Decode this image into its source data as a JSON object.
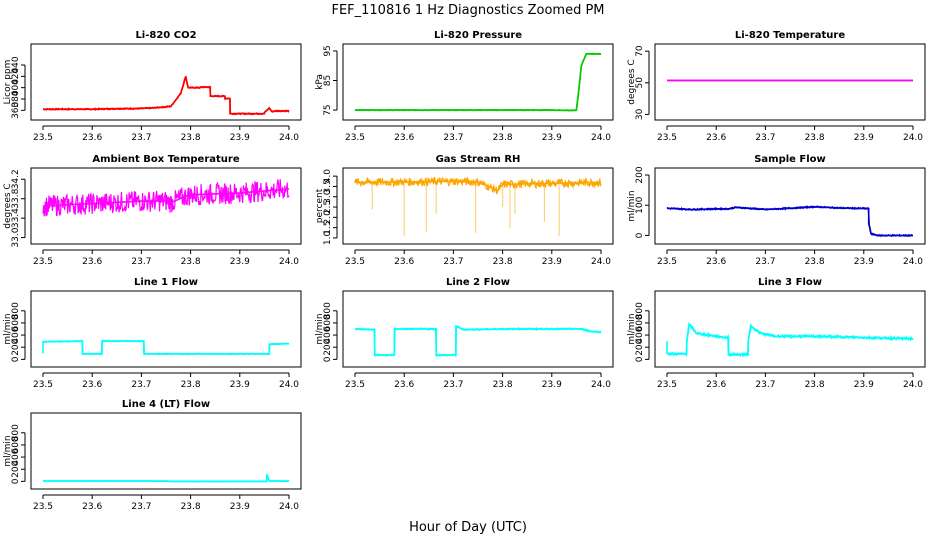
{
  "figure": {
    "title": "FEF_110816 1 Hz Diagnostics Zoomed PM",
    "xlabel": "Hour of Day (UTC)"
  },
  "chart_data": [
    {
      "type": "line",
      "title": "Li-820 CO2",
      "ylabel": "Licor ppm",
      "xlim": [
        23.5,
        24.0
      ],
      "ylim": [
        350,
        470
      ],
      "xticks": [
        "23.5",
        "23.6",
        "23.7",
        "23.8",
        "23.9",
        "24.0"
      ],
      "yticks": [
        "360",
        "380",
        "400",
        "420",
        "440"
      ],
      "series": [
        {
          "color": "#ff0000",
          "noise": 1,
          "x": [
            23.5,
            23.6,
            23.66,
            23.69,
            23.72,
            23.76,
            23.78,
            23.79,
            23.795,
            23.82,
            23.82,
            23.84,
            23.84,
            23.87,
            23.87,
            23.88,
            23.88,
            23.95,
            23.95,
            23.96,
            23.965,
            23.975,
            24.0
          ],
          "y": [
            362,
            362,
            363,
            363,
            364,
            367,
            390,
            420,
            400,
            400,
            401,
            401,
            385,
            385,
            381,
            381,
            354,
            354,
            356,
            364,
            358,
            359,
            359
          ]
        }
      ]
    },
    {
      "type": "line",
      "title": "Li-820 Pressure",
      "ylabel": "kPa",
      "xlim": [
        23.5,
        24.0
      ],
      "ylim": [
        73,
        96
      ],
      "xticks": [
        "23.5",
        "23.6",
        "23.7",
        "23.8",
        "23.9",
        "24.0"
      ],
      "yticks": [
        "75",
        "85",
        "95"
      ],
      "series": [
        {
          "color": "#00cc00",
          "noise": 0.1,
          "x": [
            23.5,
            23.89,
            23.89,
            23.945,
            23.95,
            23.955,
            23.96,
            23.97,
            24.0
          ],
          "y": [
            75,
            75,
            75,
            74.9,
            75,
            82,
            90,
            94,
            94
          ]
        }
      ]
    },
    {
      "type": "line",
      "title": "Li-820 Temperature",
      "ylabel": "degrees C",
      "xlim": [
        23.5,
        24.0
      ],
      "ylim": [
        29,
        72
      ],
      "xticks": [
        "23.5",
        "23.6",
        "23.7",
        "23.8",
        "23.9",
        "24.0"
      ],
      "yticks": [
        "30",
        "50",
        "70"
      ],
      "series": [
        {
          "color": "#ff00ff",
          "noise": 0,
          "x": [
            23.5,
            24.0
          ],
          "y": [
            51.5,
            51.5
          ]
        }
      ]
    },
    {
      "type": "line",
      "title": "Ambient Box Temperature",
      "ylabel": "degrees C",
      "xlim": [
        23.5,
        24.0
      ],
      "ylim": [
        32.95,
        34.35
      ],
      "xticks": [
        "23.5",
        "23.6",
        "23.7",
        "23.8",
        "23.9",
        "24.0"
      ],
      "yticks": [
        "33.0",
        "33.4",
        "33.8",
        "34.2"
      ],
      "series": [
        {
          "color": "#ff00ff",
          "noise": 0.22,
          "x": [
            23.5,
            23.6,
            23.7,
            23.75,
            23.76,
            23.79,
            23.8,
            23.9,
            24.0
          ],
          "y": [
            33.65,
            33.7,
            33.75,
            33.75,
            33.72,
            33.85,
            33.88,
            33.92,
            34.0
          ]
        }
      ]
    },
    {
      "type": "line",
      "title": "Gas Stream RH",
      "ylabel": "percent",
      "xlim": [
        23.5,
        24.0
      ],
      "ylim": [
        0.9,
        4.2
      ],
      "xticks": [
        "23.5",
        "23.6",
        "23.7",
        "23.8",
        "23.9",
        "24.0"
      ],
      "yticks": [
        "1.0",
        "1.5",
        "2.0",
        "2.5",
        "3.0",
        "3.5",
        "4.0"
      ],
      "series": [
        {
          "color": "#ffa500",
          "noise": 0.2,
          "x": [
            23.5,
            23.6,
            23.7,
            23.75,
            23.79,
            23.8,
            23.9,
            24.0
          ],
          "y": [
            3.7,
            3.72,
            3.75,
            3.72,
            3.3,
            3.6,
            3.65,
            3.7
          ]
        }
      ],
      "spikes": [
        [
          23.535,
          2.4
        ],
        [
          23.6,
          1.1
        ],
        [
          23.645,
          1.3
        ],
        [
          23.665,
          2.2
        ],
        [
          23.745,
          1.25
        ],
        [
          23.815,
          1.5
        ],
        [
          23.825,
          2.2
        ],
        [
          23.8,
          2.5
        ],
        [
          23.885,
          1.8
        ],
        [
          23.915,
          1.1
        ]
      ]
    },
    {
      "type": "line",
      "title": "Sample Flow",
      "ylabel": "ml/min",
      "xlim": [
        23.5,
        24.0
      ],
      "ylim": [
        -15,
        210
      ],
      "xticks": [
        "23.5",
        "23.6",
        "23.7",
        "23.8",
        "23.9",
        "24.0"
      ],
      "yticks": [
        "0",
        "100",
        "200"
      ],
      "series": [
        {
          "color": "#0000cc",
          "noise": 2,
          "x": [
            23.5,
            23.55,
            23.6,
            23.625,
            23.64,
            23.7,
            23.75,
            23.8,
            23.85,
            23.91,
            23.91,
            23.915,
            23.93,
            24.0
          ],
          "y": [
            90,
            86,
            88,
            88,
            93,
            86,
            90,
            95,
            91,
            89,
            40,
            5,
            0,
            0
          ]
        }
      ]
    },
    {
      "type": "line",
      "title": "Line 1 Flow",
      "ylabel": "ml/min",
      "xlim": [
        23.5,
        24.0
      ],
      "ylim": [
        -60,
        1060
      ],
      "xticks": [
        "23.5",
        "23.6",
        "23.7",
        "23.8",
        "23.9",
        "24.0"
      ],
      "yticks": [
        "0",
        "200",
        "400",
        "600",
        "800"
      ],
      "series": [
        {
          "color": "#00ffff",
          "noise": 6,
          "x": [
            23.5,
            23.5,
            23.58,
            23.58,
            23.62,
            23.62,
            23.705,
            23.705,
            23.96,
            23.96,
            24.0
          ],
          "y": [
            100,
            290,
            300,
            90,
            90,
            300,
            300,
            90,
            90,
            250,
            260
          ]
        }
      ]
    },
    {
      "type": "line",
      "title": "Line 2 Flow",
      "ylabel": "ml/min",
      "xlim": [
        23.5,
        24.0
      ],
      "ylim": [
        -60,
        1060
      ],
      "xticks": [
        "23.5",
        "23.6",
        "23.7",
        "23.8",
        "23.9",
        "24.0"
      ],
      "yticks": [
        "0",
        "200",
        "400",
        "600",
        "800"
      ],
      "series": [
        {
          "color": "#00ffff",
          "noise": 10,
          "x": [
            23.5,
            23.54,
            23.54,
            23.58,
            23.58,
            23.665,
            23.665,
            23.705,
            23.705,
            23.72,
            23.8,
            23.96,
            23.98,
            24.0
          ],
          "y": [
            500,
            490,
            70,
            70,
            500,
            500,
            70,
            70,
            550,
            490,
            500,
            500,
            460,
            450
          ]
        }
      ]
    },
    {
      "type": "line",
      "title": "Line 3 Flow",
      "ylabel": "ml/min",
      "xlim": [
        23.5,
        24.0
      ],
      "ylim": [
        -60,
        1060
      ],
      "xticks": [
        "23.5",
        "23.6",
        "23.7",
        "23.8",
        "23.9",
        "24.0"
      ],
      "yticks": [
        "0",
        "200",
        "400",
        "600",
        "800"
      ],
      "series": [
        {
          "color": "#00ffff",
          "noise": 18,
          "x": [
            23.5,
            23.5,
            23.505,
            23.54,
            23.54,
            23.545,
            23.56,
            23.6,
            23.62,
            23.625,
            23.625,
            23.665,
            23.665,
            23.67,
            23.69,
            23.72,
            23.8,
            23.9,
            24.0
          ],
          "y": [
            300,
            100,
            90,
            90,
            280,
            580,
            430,
            380,
            360,
            360,
            80,
            80,
            300,
            550,
            430,
            380,
            380,
            360,
            340
          ]
        }
      ]
    },
    {
      "type": "line",
      "title": "Line 4 (LT) Flow",
      "ylabel": "ml/min",
      "xlim": [
        23.5,
        24.0
      ],
      "ylim": [
        -60,
        1060
      ],
      "xticks": [
        "23.5",
        "23.6",
        "23.7",
        "23.8",
        "23.9",
        "24.0"
      ],
      "yticks": [
        "0",
        "200",
        "400",
        "600",
        "800"
      ],
      "series": [
        {
          "color": "#00ffff",
          "noise": 2,
          "x": [
            23.5,
            23.75,
            23.76,
            23.955,
            23.955,
            23.96,
            24.0
          ],
          "y": [
            5,
            5,
            0,
            0,
            120,
            5,
            5
          ]
        }
      ]
    }
  ]
}
